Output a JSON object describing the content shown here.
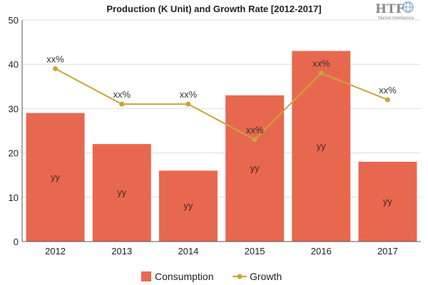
{
  "logo": {
    "mark": "HTF",
    "sub": "Market Intelligence"
  },
  "colors": {
    "bar": "#e8684f",
    "line": "#c9a43a",
    "grid": "#dddddd"
  },
  "chart_data": {
    "type": "bar",
    "title": "Production (K Unit) and Growth Rate [2012-2017]",
    "categories": [
      "2012",
      "2013",
      "2014",
      "2015",
      "2016",
      "2017"
    ],
    "ylim": [
      0,
      50
    ],
    "yticks": [
      0,
      10,
      20,
      30,
      40,
      50
    ],
    "grid": true,
    "legend_position": "bottom",
    "series": [
      {
        "name": "Consumption",
        "type": "bar",
        "values": [
          29,
          22,
          16,
          33,
          43,
          18
        ],
        "labels": [
          "yy",
          "yy",
          "yy",
          "yy",
          "yy",
          "yy"
        ]
      },
      {
        "name": "Growth",
        "type": "line",
        "values": [
          39,
          31,
          31,
          23,
          38,
          32
        ],
        "labels": [
          "xx%",
          "xx%",
          "xx%",
          "xx%",
          "xx%",
          "xx%"
        ]
      }
    ]
  }
}
